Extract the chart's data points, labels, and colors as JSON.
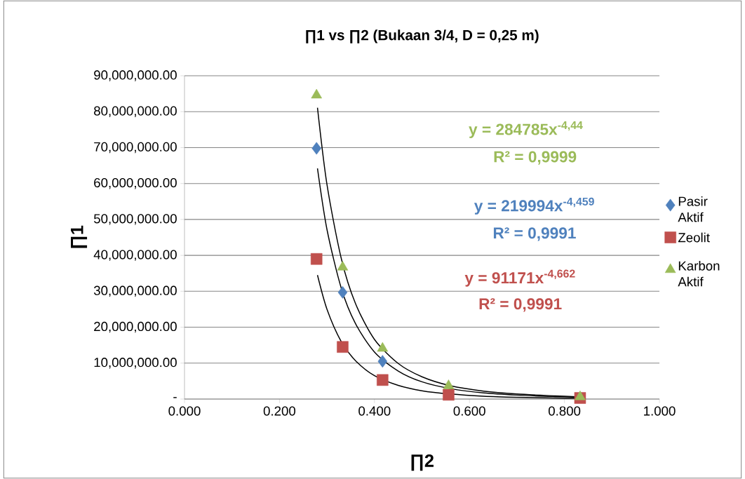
{
  "chart_data": {
    "type": "scatter",
    "title": "∏1 vs ∏2 (Bukaan  3/4, D = 0,25 m)",
    "xlabel": "∏2",
    "ylabel": "∏1",
    "xlim": [
      0,
      1
    ],
    "ylim": [
      0,
      90000000
    ],
    "xticks": [
      {
        "value": 0,
        "label": "0.000"
      },
      {
        "value": 0.2,
        "label": "0.200"
      },
      {
        "value": 0.4,
        "label": "0.400"
      },
      {
        "value": 0.6,
        "label": "0.600"
      },
      {
        "value": 0.8,
        "label": "0.800"
      },
      {
        "value": 1,
        "label": "1.000"
      }
    ],
    "yticks": [
      {
        "value": 0,
        "label": "-"
      },
      {
        "value": 10000000,
        "label": "10,000,000.00"
      },
      {
        "value": 20000000,
        "label": "20,000,000.00"
      },
      {
        "value": 30000000,
        "label": "30,000,000.00"
      },
      {
        "value": 40000000,
        "label": "40,000,000.00"
      },
      {
        "value": 50000000,
        "label": "50,000,000.00"
      },
      {
        "value": 60000000,
        "label": "60,000,000.00"
      },
      {
        "value": 70000000,
        "label": "70,000,000.00"
      },
      {
        "value": 80000000,
        "label": "80,000,000.00"
      },
      {
        "value": 90000000,
        "label": "90,000,000.00"
      }
    ],
    "grid": "y",
    "legend": "right",
    "x": [
      0.278,
      0.333,
      0.417,
      0.556,
      0.833
    ],
    "series": [
      {
        "name": "Pasir Aktif",
        "color": "#4f81bd",
        "marker": "diamond",
        "values": [
          69800000,
          29700000,
          10500000,
          null,
          null
        ]
      },
      {
        "name": "Zeolit",
        "color": "#c0504d",
        "marker": "square",
        "values": [
          39000000,
          14500000,
          5300000,
          1200000,
          300000
        ]
      },
      {
        "name": "Karbon Aktif",
        "color": "#9bbb59",
        "marker": "triangle",
        "values": [
          84600000,
          36700000,
          14100000,
          3700000,
          600000
        ]
      },
      {
        "type": "line",
        "color": "#000000",
        "marker": "none",
        "x": [
          0.28,
          0.3,
          0.33,
          0.36,
          0.4,
          0.45,
          0.5,
          0.56,
          0.63,
          0.7,
          0.78,
          0.833
        ],
        "values": [
          64200000,
          47200000,
          30900000,
          21000000,
          13100000,
          7800000,
          4800000,
          2900000,
          1700000,
          1100000,
          700000,
          500000
        ]
      },
      {
        "type": "line",
        "color": "#000000",
        "marker": "none",
        "x": [
          0.28,
          0.3,
          0.33,
          0.36,
          0.4,
          0.45,
          0.5,
          0.56,
          0.63,
          0.7,
          0.78,
          0.833
        ],
        "values": [
          34500000,
          25000000,
          16000000,
          10700000,
          6500000,
          3800000,
          2300000,
          1400000,
          800000,
          500000,
          300000,
          200000
        ]
      },
      {
        "type": "line",
        "color": "#000000",
        "marker": "none",
        "x": [
          0.28,
          0.3,
          0.33,
          0.36,
          0.4,
          0.45,
          0.5,
          0.56,
          0.63,
          0.7,
          0.78,
          0.833
        ],
        "values": [
          81100000,
          59700000,
          39200000,
          26600000,
          16600000,
          9900000,
          6200000,
          3700000,
          2200000,
          1400000,
          900000,
          600000
        ]
      }
    ],
    "annotations": [
      "y = 284785x$^{-4,44}$",
      "R² = 0,9999",
      "y = 219994x$^{-4,459}$",
      "R² = 0,9991",
      "y = 91171x$^{-4,662}$",
      "R² = 0,9991"
    ]
  }
}
